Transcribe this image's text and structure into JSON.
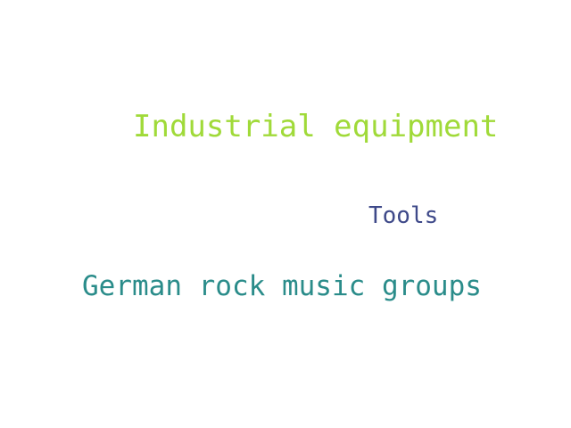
{
  "words": [
    {
      "text": "Industrial equipment",
      "color": "#a0da39"
    },
    {
      "text": "Tools",
      "color": "#3e4989"
    },
    {
      "text": "German rock music groups",
      "color": "#2a8c8a"
    }
  ]
}
